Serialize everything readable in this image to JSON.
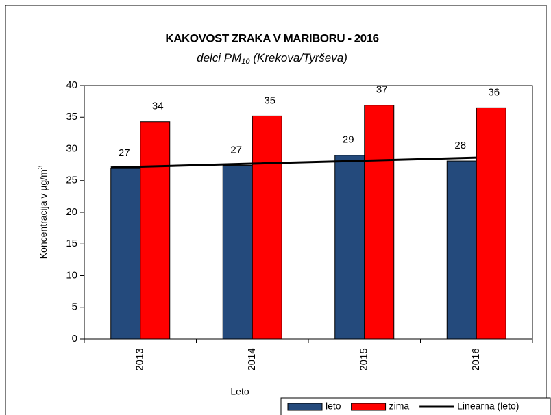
{
  "chart_data": {
    "type": "bar",
    "title": "KAKOVOST ZRAKA V MARIBORU - 2016",
    "subtitle": [
      "delci PM",
      "10",
      " (Krekova/Tyrševa)"
    ],
    "ylabel": [
      "Koncentracija v µg/m",
      "3"
    ],
    "xlabel": "Leto",
    "categories": [
      "2013",
      "2014",
      "2015",
      "2016"
    ],
    "series": [
      {
        "name": "leto",
        "color": "#244a7c",
        "values": [
          26.9,
          27.4,
          29.0,
          28.1
        ],
        "value_labels": [
          "27",
          "27",
          "29",
          "28"
        ]
      },
      {
        "name": "zima",
        "color": "#ff0000",
        "values": [
          34.3,
          35.2,
          36.9,
          36.5
        ],
        "value_labels": [
          "34",
          "35",
          "37",
          "36"
        ]
      },
      {
        "name": "Linearna (leto)",
        "type": "line",
        "color": "#000000",
        "values": [
          27.07,
          27.59,
          28.11,
          28.63
        ]
      }
    ],
    "ylim": [
      0,
      40
    ],
    "yticks": [
      0,
      5,
      10,
      15,
      20,
      25,
      30,
      35,
      40
    ],
    "legend": "bottom-right"
  }
}
